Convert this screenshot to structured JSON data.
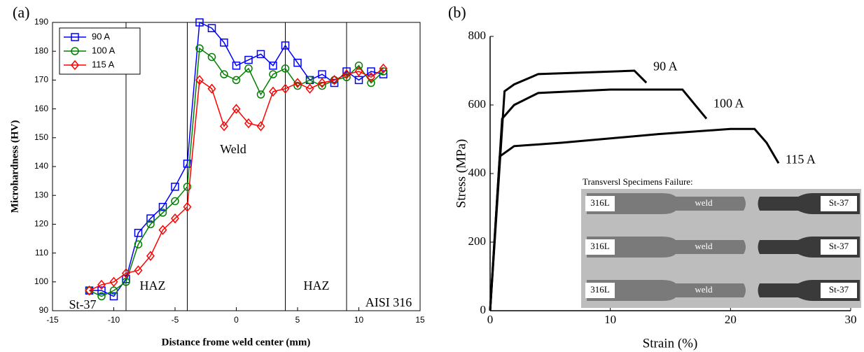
{
  "chart_data": [
    {
      "type": "line",
      "panel": "(a)",
      "xlabel": "Distance frome weld center (mm)",
      "ylabel": "Microhardness (HV)",
      "x": [
        -12,
        -11,
        -10,
        -9,
        -8,
        -7,
        -6,
        -5,
        -4,
        -3,
        -2,
        -1,
        0,
        1,
        2,
        3,
        4,
        5,
        6,
        7,
        8,
        9,
        10,
        11,
        12
      ],
      "series": [
        {
          "name": "90 A",
          "color": "#0000ff",
          "marker": "square",
          "values": [
            97,
            97,
            95,
            101,
            117,
            122,
            126,
            133,
            141,
            190,
            188,
            183,
            175,
            177,
            179,
            175,
            182,
            176,
            170,
            172,
            169,
            173,
            170,
            173,
            172
          ]
        },
        {
          "name": "100 A",
          "color": "#008000",
          "marker": "circle",
          "values": [
            97,
            95,
            97,
            100,
            113,
            120,
            124,
            128,
            133,
            181,
            178,
            172,
            170,
            174,
            165,
            172,
            174,
            168,
            170,
            168,
            170,
            171,
            175,
            169,
            173
          ]
        },
        {
          "name": "115 A",
          "color": "#ff0000",
          "marker": "diamond",
          "values": [
            97,
            99,
            100,
            103,
            104,
            109,
            118,
            122,
            126,
            170,
            167,
            154,
            160,
            155,
            154,
            166,
            167,
            169,
            167,
            169,
            170,
            172,
            173,
            171,
            174
          ]
        }
      ],
      "xlim": [
        -15,
        15
      ],
      "xticks": [
        -15,
        -10,
        -5,
        0,
        5,
        10,
        15
      ],
      "ylim": [
        90,
        190
      ],
      "yticks": [
        90,
        100,
        110,
        120,
        130,
        140,
        150,
        160,
        170,
        180,
        190
      ],
      "boundaries": [
        -9,
        -4,
        4,
        9
      ],
      "annotations": [
        "St-37",
        "HAZ",
        "Weld",
        "HAZ",
        "AISI 316"
      ],
      "legend": "upper left"
    },
    {
      "type": "line",
      "panel": "(b)",
      "xlabel": "Strain (%)",
      "ylabel": "Stress (MPa)",
      "series": [
        {
          "name": "90 A",
          "color": "#000000",
          "x": [
            0,
            1.2,
            2,
            4,
            8,
            12,
            13
          ],
          "values": [
            0,
            640,
            660,
            690,
            695,
            700,
            665
          ]
        },
        {
          "name": "100 A",
          "color": "#000000",
          "x": [
            0,
            1,
            2,
            4,
            10,
            16,
            18
          ],
          "values": [
            0,
            560,
            600,
            635,
            645,
            645,
            560
          ]
        },
        {
          "name": "115 A",
          "color": "#000000",
          "x": [
            0,
            0.8,
            2,
            6,
            14,
            20,
            22,
            23,
            24
          ],
          "values": [
            0,
            450,
            480,
            490,
            515,
            530,
            530,
            490,
            430
          ]
        }
      ],
      "xlim": [
        0,
        30
      ],
      "xticks": [
        0,
        10,
        20,
        30
      ],
      "ylim": [
        0,
        800
      ],
      "yticks": [
        0,
        200,
        400,
        600,
        800
      ]
    }
  ],
  "inset": {
    "title": "Transversl Specimens Failure:",
    "rows": [
      {
        "left": "316L",
        "middle": "weld",
        "right": "St-37"
      },
      {
        "left": "316L",
        "middle": "weld",
        "right": "St-37"
      },
      {
        "left": "316L",
        "middle": "weld",
        "right": "St-37"
      }
    ]
  }
}
